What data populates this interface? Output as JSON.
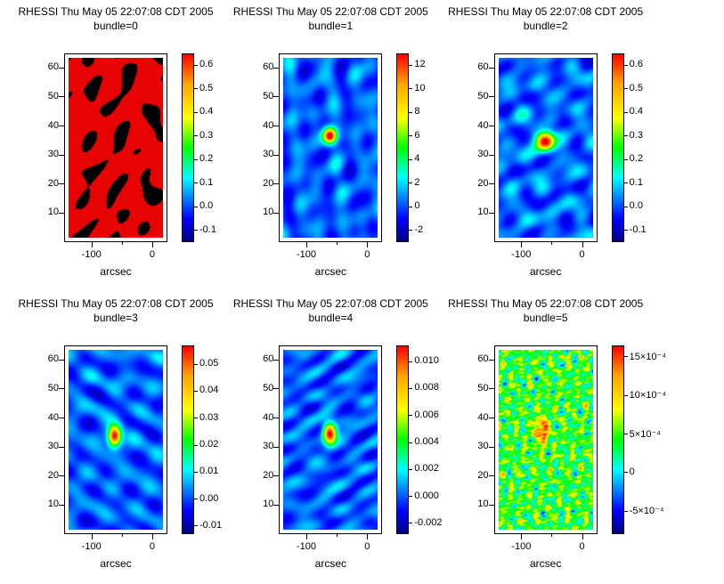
{
  "chart_data": [
    {
      "type": "heatmap",
      "title": "RHESSI Thu May 05 22:07:08 CDT 2005",
      "subtitle": "bundle=0",
      "xlabel": "arcsec",
      "x_range": [
        -145,
        25
      ],
      "y_range": [
        0,
        65
      ],
      "x_ticks": [
        {
          "v": -100,
          "label": "-100"
        },
        {
          "v": 0,
          "label": "0"
        }
      ],
      "x_minor_ticks": [
        -50
      ],
      "y_ticks": [
        {
          "v": 10,
          "label": "10"
        },
        {
          "v": 20,
          "label": "20"
        },
        {
          "v": 30,
          "label": "30"
        },
        {
          "v": 40,
          "label": "40"
        },
        {
          "v": 50,
          "label": "50"
        },
        {
          "v": 60,
          "label": "60"
        }
      ],
      "colorbar": {
        "min": -0.15,
        "max": 0.65,
        "ticks": [
          {
            "v": 0.6,
            "label": "0.6"
          },
          {
            "v": 0.5,
            "label": "0.5"
          },
          {
            "v": 0.4,
            "label": "0.4"
          },
          {
            "v": 0.3,
            "label": "0.3"
          },
          {
            "v": 0.2,
            "label": "0.2"
          },
          {
            "v": 0.1,
            "label": "0.1"
          },
          {
            "v": 0.0,
            "label": "0.0"
          },
          {
            "v": -0.1,
            "label": "-0.1"
          }
        ]
      },
      "description": "saturated red map with irregular black patches",
      "render": {
        "mode": "threshold",
        "seed": 11,
        "scale": 30,
        "thr": -0.28
      }
    },
    {
      "type": "heatmap",
      "title": "RHESSI Thu May 05 22:07:08 CDT 2005",
      "subtitle": "bundle=1",
      "xlabel": "arcsec",
      "x_range": [
        -145,
        25
      ],
      "y_range": [
        0,
        65
      ],
      "x_ticks": [
        {
          "v": -100,
          "label": "-100"
        },
        {
          "v": 0,
          "label": "0"
        }
      ],
      "x_minor_ticks": [
        -50
      ],
      "y_ticks": [
        {
          "v": 10,
          "label": "10"
        },
        {
          "v": 20,
          "label": "20"
        },
        {
          "v": 30,
          "label": "30"
        },
        {
          "v": 40,
          "label": "40"
        },
        {
          "v": 50,
          "label": "50"
        },
        {
          "v": 60,
          "label": "60"
        }
      ],
      "colorbar": {
        "min": -3,
        "max": 13,
        "ticks": [
          {
            "v": 12,
            "label": "12"
          },
          {
            "v": 10,
            "label": "10"
          },
          {
            "v": 8,
            "label": "8"
          },
          {
            "v": 6,
            "label": "6"
          },
          {
            "v": 4,
            "label": "4"
          },
          {
            "v": 2,
            "label": "2"
          },
          {
            "v": 0,
            "label": "0"
          },
          {
            "v": -2,
            "label": "-2"
          }
        ]
      },
      "description": "blue rippled background with compact bright source near (-60, 37) arcsec",
      "render": {
        "mode": "gaussian",
        "seed": 21,
        "scale": 26,
        "base": 0.2,
        "amp": 0.1,
        "source": {
          "x": -62,
          "y": 37,
          "sx": 5,
          "sy": 6,
          "amp": 0.85
        }
      }
    },
    {
      "type": "heatmap",
      "title": "RHESSI Thu May 05 22:07:08 CDT 2005",
      "subtitle": "bundle=2",
      "xlabel": "arcsec",
      "x_range": [
        -145,
        25
      ],
      "y_range": [
        0,
        65
      ],
      "x_ticks": [
        {
          "v": -100,
          "label": "-100"
        },
        {
          "v": 0,
          "label": "0"
        }
      ],
      "x_minor_ticks": [
        -50
      ],
      "y_ticks": [
        {
          "v": 10,
          "label": "10"
        },
        {
          "v": 20,
          "label": "20"
        },
        {
          "v": 30,
          "label": "30"
        },
        {
          "v": 40,
          "label": "40"
        },
        {
          "v": 50,
          "label": "50"
        },
        {
          "v": 60,
          "label": "60"
        }
      ],
      "colorbar": {
        "min": -0.15,
        "max": 0.65,
        "ticks": [
          {
            "v": 0.6,
            "label": "0.6"
          },
          {
            "v": 0.5,
            "label": "0.5"
          },
          {
            "v": 0.4,
            "label": "0.4"
          },
          {
            "v": 0.3,
            "label": "0.3"
          },
          {
            "v": 0.2,
            "label": "0.2"
          },
          {
            "v": 0.1,
            "label": "0.1"
          },
          {
            "v": 0.0,
            "label": "0.0"
          },
          {
            "v": -0.1,
            "label": "-0.1"
          }
        ]
      },
      "description": "blue rippled background with bright source near (-60, 35) arcsec",
      "render": {
        "mode": "gaussian",
        "seed": 31,
        "scale": 26,
        "base": 0.21,
        "amp": 0.11,
        "source": {
          "x": -62,
          "y": 35,
          "sx": 7,
          "sy": 7,
          "amp": 0.85
        }
      }
    },
    {
      "type": "heatmap",
      "title": "RHESSI Thu May 05 22:07:08 CDT 2005",
      "subtitle": "bundle=3",
      "xlabel": "arcsec",
      "x_range": [
        -145,
        25
      ],
      "y_range": [
        0,
        65
      ],
      "x_ticks": [
        {
          "v": -100,
          "label": "-100"
        },
        {
          "v": 0,
          "label": "0"
        }
      ],
      "x_minor_ticks": [
        -50
      ],
      "y_ticks": [
        {
          "v": 10,
          "label": "10"
        },
        {
          "v": 20,
          "label": "20"
        },
        {
          "v": 30,
          "label": "30"
        },
        {
          "v": 40,
          "label": "40"
        },
        {
          "v": 50,
          "label": "50"
        },
        {
          "v": 60,
          "label": "60"
        }
      ],
      "colorbar": {
        "min": -0.013,
        "max": 0.057,
        "ticks": [
          {
            "v": 0.05,
            "label": "0.05"
          },
          {
            "v": 0.04,
            "label": "0.04"
          },
          {
            "v": 0.03,
            "label": "0.03"
          },
          {
            "v": 0.02,
            "label": "0.02"
          },
          {
            "v": 0.01,
            "label": "0.01"
          },
          {
            "v": 0.0,
            "label": "0.00"
          },
          {
            "v": -0.01,
            "label": "-0.01"
          }
        ]
      },
      "description": "blue rippled background with elongated bright source near (-63, 34) arcsec",
      "render": {
        "mode": "gaussian",
        "seed": 41,
        "scale": 26,
        "base": 0.2,
        "amp": 0.1,
        "source": {
          "x": -63,
          "y": 34,
          "sx": 5,
          "sy": 8,
          "amp": 0.88
        }
      }
    },
    {
      "type": "heatmap",
      "title": "RHESSI Thu May 05 22:07:08 CDT 2005",
      "subtitle": "bundle=4",
      "xlabel": "arcsec",
      "x_range": [
        -145,
        25
      ],
      "y_range": [
        0,
        65
      ],
      "x_ticks": [
        {
          "v": -100,
          "label": "-100"
        },
        {
          "v": 0,
          "label": "0"
        }
      ],
      "x_minor_ticks": [
        -50
      ],
      "y_ticks": [
        {
          "v": 10,
          "label": "10"
        },
        {
          "v": 20,
          "label": "20"
        },
        {
          "v": 30,
          "label": "30"
        },
        {
          "v": 40,
          "label": "40"
        },
        {
          "v": 50,
          "label": "50"
        },
        {
          "v": 60,
          "label": "60"
        }
      ],
      "colorbar": {
        "min": -0.0028,
        "max": 0.0112,
        "ticks": [
          {
            "v": 0.01,
            "label": "0.010"
          },
          {
            "v": 0.008,
            "label": "0.008"
          },
          {
            "v": 0.006,
            "label": "0.006"
          },
          {
            "v": 0.004,
            "label": "0.004"
          },
          {
            "v": 0.002,
            "label": "0.002"
          },
          {
            "v": 0.0,
            "label": "0.000"
          },
          {
            "v": -0.002,
            "label": "-0.002"
          }
        ]
      },
      "description": "blue rippled background with compact bright source near (-62, 35) arcsec",
      "render": {
        "mode": "gaussian",
        "seed": 51,
        "scale": 26,
        "base": 0.2,
        "amp": 0.1,
        "source": {
          "x": -62,
          "y": 35,
          "sx": 5,
          "sy": 8,
          "amp": 0.85
        }
      }
    },
    {
      "type": "heatmap",
      "title": "RHESSI Thu May 05 22:07:08 CDT 2005",
      "subtitle": "bundle=5",
      "xlabel": "arcsec",
      "x_range": [
        -145,
        25
      ],
      "y_range": [
        0,
        65
      ],
      "x_ticks": [
        {
          "v": -100,
          "label": "-100"
        },
        {
          "v": 0,
          "label": "0"
        }
      ],
      "x_minor_ticks": [
        -50
      ],
      "y_ticks": [
        {
          "v": 10,
          "label": "10"
        },
        {
          "v": 20,
          "label": "20"
        },
        {
          "v": 30,
          "label": "30"
        },
        {
          "v": 40,
          "label": "40"
        },
        {
          "v": 50,
          "label": "50"
        },
        {
          "v": 60,
          "label": "60"
        }
      ],
      "colorbar": {
        "min": -0.0008,
        "max": 0.00165,
        "ticks": [
          {
            "v": 0.0015,
            "label": "15×10⁻⁴"
          },
          {
            "v": 0.001,
            "label": "10×10⁻⁴"
          },
          {
            "v": 0.0005,
            "label": "5×10⁻⁴"
          },
          {
            "v": 0.0,
            "label": "0"
          },
          {
            "v": -0.0005,
            "label": "-5×10⁻⁴"
          }
        ]
      },
      "description": "noisy green speckled map with red elongated source near (-68, 36) arcsec",
      "render": {
        "mode": "speckle",
        "seed": 61,
        "scale": 13,
        "base": 0.5,
        "amp": 0.2,
        "source": {
          "x": -68,
          "y": 36,
          "sx": 5,
          "sy": 10,
          "amp": 0.48
        }
      }
    }
  ]
}
